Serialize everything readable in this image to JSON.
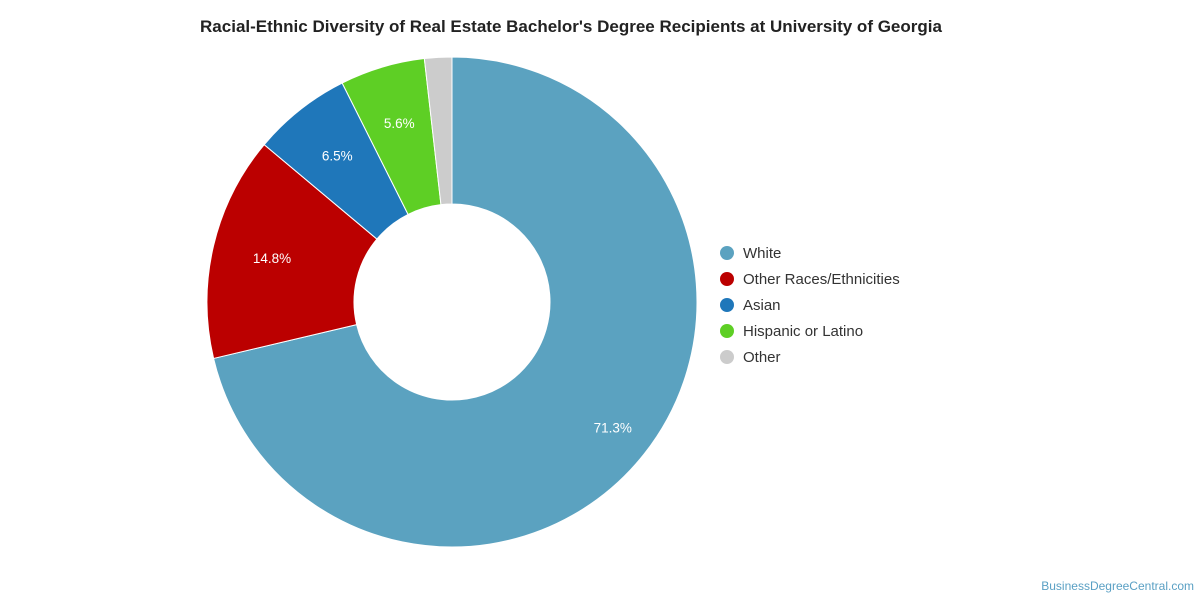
{
  "chart_data": {
    "type": "pie",
    "title": "Racial-Ethnic Diversity of Real Estate Bachelor's Degree Recipients at University of Georgia",
    "donut": true,
    "legend_position": "right",
    "slices": [
      {
        "label": "White",
        "value": 71.3,
        "value_label": "71.3%",
        "color": "#5ba2c0"
      },
      {
        "label": "Other Races/Ethnicities",
        "value": 14.8,
        "value_label": "14.8%",
        "color": "#bb0000"
      },
      {
        "label": "Asian",
        "value": 6.5,
        "value_label": "6.5%",
        "color": "#1f77ba"
      },
      {
        "label": "Hispanic or Latino",
        "value": 5.6,
        "value_label": "5.6%",
        "color": "#5ecf25"
      },
      {
        "label": "Other",
        "value": 1.8,
        "value_label": "",
        "color": "#cccccc"
      }
    ]
  },
  "watermark": "BusinessDegreeCentral.com"
}
